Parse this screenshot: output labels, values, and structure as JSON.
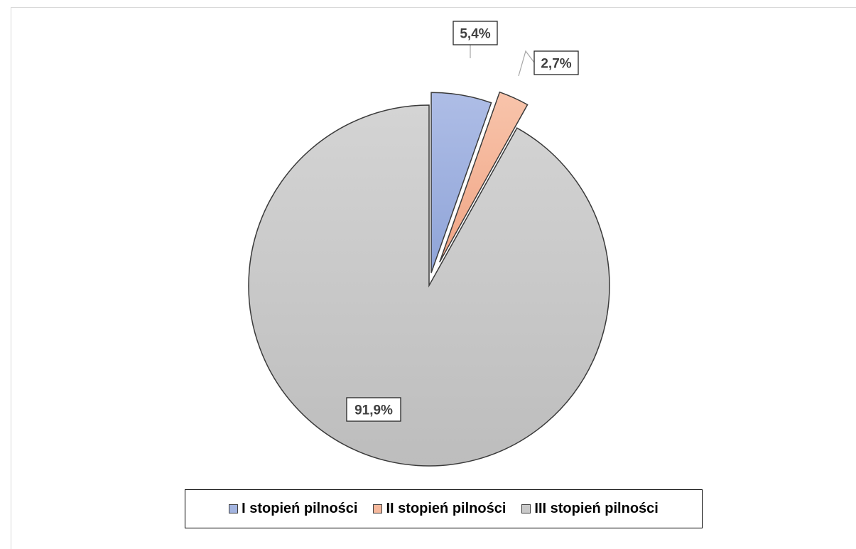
{
  "chart_data": {
    "type": "pie",
    "title": "",
    "slices": [
      {
        "label": "I stopień pilności",
        "value": 5.4,
        "display": "5,4%",
        "color": "#a3b4e0"
      },
      {
        "label": "II stopień pilności",
        "value": 2.7,
        "display": "2,7%",
        "color": "#f5b89c"
      },
      {
        "label": "III stopień pilności",
        "value": 91.9,
        "display": "91,9%",
        "color": "#c9c9c9"
      }
    ],
    "start_angle_deg": 0,
    "direction": "clockwise",
    "exploded_slices": [
      "I stopień pilności",
      "II stopień pilności"
    ],
    "data_labels": "boxed percent",
    "legend_position": "bottom"
  }
}
